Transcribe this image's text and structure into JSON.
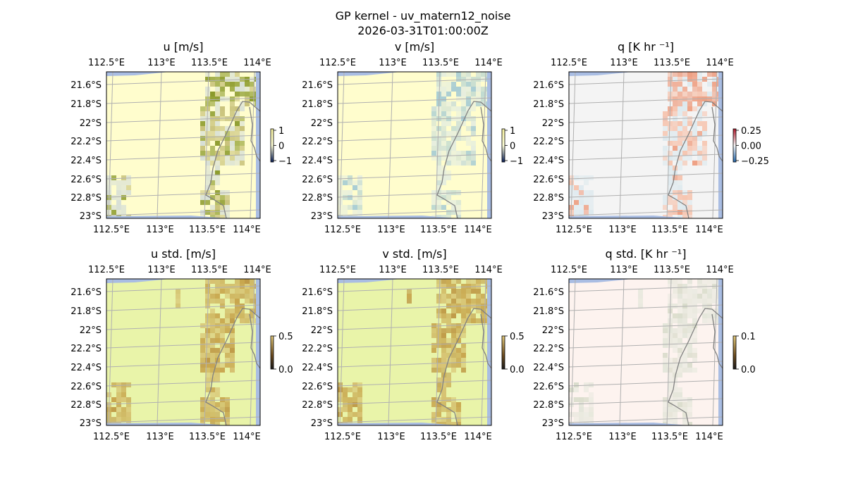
{
  "figure": {
    "title": "GP kernel - uv_matern12_noise",
    "subtitle": "2026-03-31T01:00:00Z"
  },
  "chart_data": [
    {
      "id": "u",
      "type": "heatmap",
      "title": "u [m/s]",
      "row": 0,
      "col": 0,
      "x_ticks": [
        "112.5°E",
        "113°E",
        "113.5°E",
        "114°E"
      ],
      "y_ticks": [
        "21.6°S",
        "21.8°S",
        "22°S",
        "22.2°S",
        "22.4°S",
        "22.6°S",
        "22.8°S",
        "23°S"
      ],
      "x_range_deg": [
        112.4,
        114.2
      ],
      "y_range_deg": [
        -23.0,
        -21.45
      ],
      "colorbar": {
        "ticks": [
          "1",
          "0",
          "−1"
        ],
        "range": [
          -1,
          1
        ]
      },
      "colors": {
        "background": "#fffdcd",
        "patch": "#c9c27a",
        "dark": "#8b9a2a",
        "light": "#d7dfd6"
      }
    },
    {
      "id": "v",
      "type": "heatmap",
      "title": "v [m/s]",
      "row": 0,
      "col": 1,
      "x_ticks": [
        "112.5°E",
        "113°E",
        "113.5°E",
        "114°E"
      ],
      "y_ticks": [
        "21.6°S",
        "21.8°S",
        "22°S",
        "22.2°S",
        "22.4°S",
        "22.6°S",
        "22.8°S",
        "23°S"
      ],
      "x_range_deg": [
        112.4,
        114.2
      ],
      "y_range_deg": [
        -23.0,
        -21.45
      ],
      "colorbar": {
        "ticks": [
          "1",
          "0",
          "−1"
        ],
        "range": [
          -1,
          1
        ]
      },
      "colors": {
        "background": "#fffdcd",
        "patch": "#cfe0d6",
        "dark": "#a9cdd3",
        "light": "#e6eede"
      }
    },
    {
      "id": "q",
      "type": "heatmap",
      "title": "q [K hr ⁻¹]",
      "row": 0,
      "col": 2,
      "x_ticks": [
        "112.5°E",
        "113°E",
        "113.5°E",
        "114°E"
      ],
      "y_ticks": [
        "21.6°S",
        "21.8°S",
        "22°S",
        "22.2°S",
        "22.4°S",
        "22.6°S",
        "22.8°S",
        "23°S"
      ],
      "x_range_deg": [
        112.4,
        114.2
      ],
      "y_range_deg": [
        -23.0,
        -21.45
      ],
      "colorbar": {
        "ticks": [
          "0.25",
          "0.00",
          "−0.25"
        ],
        "range": [
          -0.25,
          0.25
        ]
      },
      "colors": {
        "background": "#f4f4f4",
        "patch": "#f6c5b0",
        "dark": "#ee9f82",
        "light": "#dde9ee"
      }
    },
    {
      "id": "u_std",
      "type": "heatmap",
      "title": "u std. [m/s]",
      "row": 1,
      "col": 0,
      "x_ticks": [
        "112.5°E",
        "113°E",
        "113.5°E",
        "114°E"
      ],
      "y_ticks": [
        "21.6°S",
        "21.8°S",
        "22°S",
        "22.2°S",
        "22.4°S",
        "22.6°S",
        "22.8°S",
        "23°S"
      ],
      "x_range_deg": [
        112.4,
        114.2
      ],
      "y_range_deg": [
        -23.0,
        -21.45
      ],
      "colorbar": {
        "ticks": [
          "0.5",
          "0.0"
        ],
        "range": [
          0,
          0.5
        ]
      },
      "colors": {
        "background": "#e9f4a9",
        "patch": "#c8a64e",
        "dark": "#bf9a47",
        "light": "#d6c070"
      }
    },
    {
      "id": "v_std",
      "type": "heatmap",
      "title": "v std. [m/s]",
      "row": 1,
      "col": 1,
      "x_ticks": [
        "112.5°E",
        "113°E",
        "113.5°E",
        "114°E"
      ],
      "y_ticks": [
        "21.6°S",
        "21.8°S",
        "22°S",
        "22.2°S",
        "22.4°S",
        "22.6°S",
        "22.8°S",
        "23°S"
      ],
      "x_range_deg": [
        112.4,
        114.2
      ],
      "y_range_deg": [
        -23.0,
        -21.45
      ],
      "colorbar": {
        "ticks": [
          "0.5",
          "0.0"
        ],
        "range": [
          0,
          0.5
        ]
      },
      "colors": {
        "background": "#e9f4a9",
        "patch": "#c8a64e",
        "dark": "#bf9a47",
        "light": "#d6c070"
      }
    },
    {
      "id": "q_std",
      "type": "heatmap",
      "title": "q std. [K hr ⁻¹]",
      "row": 1,
      "col": 2,
      "x_ticks": [
        "112.5°E",
        "113°E",
        "113.5°E",
        "114°E"
      ],
      "y_ticks": [
        "21.6°S",
        "21.8°S",
        "22°S",
        "22.2°S",
        "22.4°S",
        "22.6°S",
        "22.8°S",
        "23°S"
      ],
      "x_range_deg": [
        112.4,
        114.2
      ],
      "y_range_deg": [
        -23.0,
        -21.45
      ],
      "colorbar": {
        "ticks": [
          "0.1",
          "0.0"
        ],
        "range": [
          0,
          0.1
        ]
      },
      "colors": {
        "background": "#fdf3ef",
        "patch": "#e4e6da",
        "dark": "#d9dccb",
        "light": "#ecebe2"
      }
    }
  ],
  "colors": {
    "ocean": "#a9bde3",
    "grid": "#b0b0b0",
    "coastline": "#808080"
  }
}
